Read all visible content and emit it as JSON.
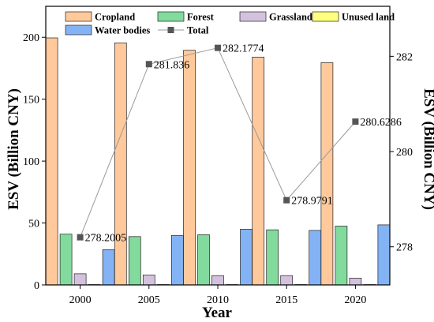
{
  "chart_data": {
    "type": "bar",
    "categories": [
      "2000",
      "2005",
      "2010",
      "2015",
      "2020"
    ],
    "xlabel": "Year",
    "ylabel": "ESV (Billion CNY)",
    "ylabel_right": "ESV (Billion CNY)",
    "ylim": [
      0,
      225
    ],
    "ylim_right": [
      277.2,
      283.05
    ],
    "yticks": [
      "0",
      "50",
      "100",
      "150",
      "200"
    ],
    "yticks_right": [
      "278",
      "280",
      "282"
    ],
    "legend_position": "top",
    "grid": false,
    "series": [
      {
        "name": "Cropland",
        "color": "#FFC99C",
        "values": [
          199.5,
          195.5,
          189.5,
          184,
          179.5
        ]
      },
      {
        "name": "Forest",
        "color": "#82DA9D",
        "values": [
          41,
          39,
          40.5,
          44.5,
          47.5
        ]
      },
      {
        "name": "Grassland",
        "color": "#D3C2DE",
        "values": [
          9,
          8,
          7.5,
          7.5,
          5.5
        ]
      },
      {
        "name": "Unused land",
        "color": "#FFFF7F",
        "values": [
          0.3,
          0.3,
          0.3,
          0.3,
          0.3
        ]
      },
      {
        "name": "Water bodies",
        "color": "#84B3F5",
        "values": [
          28.5,
          40,
          45,
          44,
          48.5
        ]
      }
    ],
    "line_series": {
      "name": "Total",
      "axis": "right",
      "color": "#555555",
      "values": [
        278.2005,
        281.836,
        282.1774,
        278.9791,
        280.6286
      ],
      "labels": [
        "278.2005",
        "281.836",
        "282.1774",
        "278.9791",
        "280.6286"
      ]
    }
  }
}
